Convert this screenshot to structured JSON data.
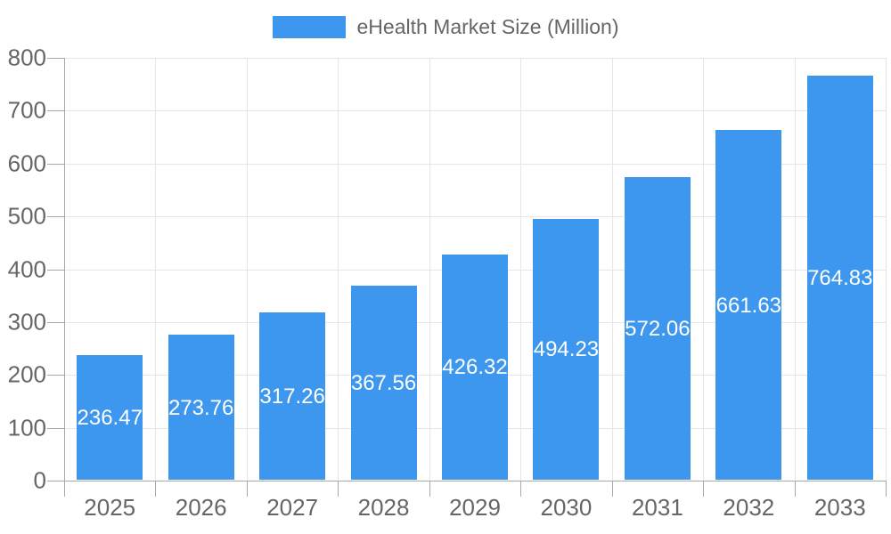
{
  "chart_data": {
    "type": "bar",
    "title": "eHealth Market Size (Million)",
    "legend_label": "eHealth Market Size (Million)",
    "legend_position": "top-center",
    "categories": [
      "2025",
      "2026",
      "2027",
      "2028",
      "2029",
      "2030",
      "2031",
      "2032",
      "2033"
    ],
    "values": [
      236.47,
      273.76,
      317.26,
      367.56,
      426.32,
      494.23,
      572.06,
      661.63,
      764.83
    ],
    "value_labels": [
      "236.47",
      "273.76",
      "317.26",
      "367.56",
      "426.32",
      "494.23",
      "572.06",
      "661.63",
      "764.83"
    ],
    "xlabel": "",
    "ylabel": "",
    "ylim": [
      0,
      800
    ],
    "yticks": [
      0,
      100,
      200,
      300,
      400,
      500,
      600,
      700,
      800
    ],
    "grid": true,
    "colors": {
      "bar": "#3D97EE",
      "axis_line": "#a8a8a8",
      "grid_line": "#e6e6e6",
      "tick_text": "#666666",
      "bar_label_text": "#ffffff",
      "background": "#ffffff"
    }
  }
}
